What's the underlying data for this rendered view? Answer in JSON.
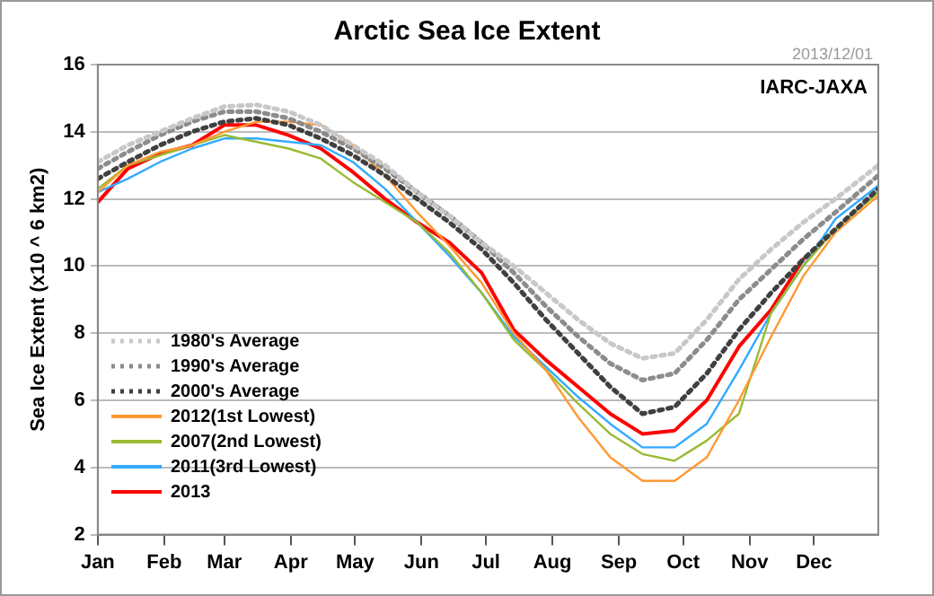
{
  "chart_data": {
    "type": "line",
    "title": "Arctic Sea Ice Extent",
    "ylabel": "Sea Ice Extent (x10 ^ 6 km2)",
    "annotations": [
      "2013/12/01",
      "IARC-JAXA"
    ],
    "x": [
      "--01-01",
      "--01-15",
      "--01-30",
      "--02-14",
      "--03-01",
      "--03-16",
      "--03-31",
      "--04-15",
      "--04-30",
      "--05-15",
      "--05-30",
      "--06-14",
      "--06-29",
      "--07-14",
      "--07-29",
      "--08-13",
      "--08-28",
      "--09-12",
      "--09-27",
      "--10-12",
      "--10-27",
      "--11-11",
      "--11-26",
      "--12-11",
      "--12-31"
    ],
    "xlim": [
      "--01-01",
      "--12-31"
    ],
    "xticks": [
      {
        "value": "--01-01",
        "label": "Jan"
      },
      {
        "value": "--02-01",
        "label": "Feb"
      },
      {
        "value": "--03-01",
        "label": "Mar"
      },
      {
        "value": "--04-01",
        "label": "Apr"
      },
      {
        "value": "--05-01",
        "label": "May"
      },
      {
        "value": "--06-01",
        "label": "Jun"
      },
      {
        "value": "--07-01",
        "label": "Jul"
      },
      {
        "value": "--08-01",
        "label": "Aug"
      },
      {
        "value": "--09-01",
        "label": "Sep"
      },
      {
        "value": "--10-01",
        "label": "Oct"
      },
      {
        "value": "--11-01",
        "label": "Nov"
      },
      {
        "value": "--12-01",
        "label": "Dec"
      }
    ],
    "ylim": [
      2,
      16
    ],
    "yticks": [
      2,
      4,
      6,
      8,
      10,
      12,
      14,
      16
    ],
    "grid": "y",
    "legend": "bottom left",
    "marker": "none",
    "series": [
      {
        "name": "1980's Average",
        "color": "#c8c8c8",
        "line_style": "dotted",
        "values": [
          13.1,
          13.6,
          14.0,
          14.4,
          14.75,
          14.8,
          14.6,
          14.2,
          13.6,
          13.0,
          12.2,
          11.5,
          10.7,
          10.0,
          9.2,
          8.4,
          7.7,
          7.25,
          7.4,
          8.4,
          9.6,
          10.5,
          11.3,
          12.0,
          13.0
        ]
      },
      {
        "name": "1990's Average",
        "color": "#8c8c8c",
        "line_style": "dotted",
        "values": [
          12.9,
          13.4,
          13.9,
          14.3,
          14.6,
          14.6,
          14.4,
          14.0,
          13.5,
          12.9,
          12.2,
          11.5,
          10.7,
          9.8,
          8.8,
          7.9,
          7.1,
          6.6,
          6.8,
          7.8,
          9.0,
          9.9,
          10.8,
          11.6,
          12.7
        ]
      },
      {
        "name": "2000's Average",
        "color": "#404040",
        "line_style": "dotted",
        "values": [
          12.6,
          13.1,
          13.6,
          14.0,
          14.3,
          14.4,
          14.2,
          13.8,
          13.3,
          12.7,
          12.0,
          11.3,
          10.5,
          9.5,
          8.4,
          7.4,
          6.4,
          5.6,
          5.8,
          6.8,
          8.1,
          9.2,
          10.2,
          11.1,
          12.3
        ]
      },
      {
        "name": "2012(1st Lowest)",
        "color": "#ff9933",
        "line_style": "solid",
        "values": [
          12.2,
          13.0,
          13.4,
          13.6,
          14.0,
          14.3,
          14.3,
          14.2,
          13.6,
          12.7,
          11.6,
          10.6,
          9.5,
          8.0,
          6.9,
          5.5,
          4.3,
          3.6,
          3.6,
          4.3,
          6.0,
          7.9,
          9.7,
          11.0,
          12.1
        ]
      },
      {
        "name": "2007(2nd Lowest)",
        "color": "#99bb33",
        "line_style": "solid",
        "values": [
          12.3,
          13.0,
          13.3,
          13.6,
          13.9,
          13.7,
          13.5,
          13.2,
          12.5,
          11.9,
          11.3,
          10.4,
          9.2,
          7.8,
          6.9,
          5.9,
          5.0,
          4.4,
          4.2,
          4.8,
          5.6,
          8.6,
          10.0,
          11.1,
          12.2
        ]
      },
      {
        "name": "2011(3rd Lowest)",
        "color": "#33aaff",
        "line_style": "solid",
        "values": [
          12.2,
          12.6,
          13.1,
          13.5,
          13.8,
          13.8,
          13.7,
          13.6,
          13.1,
          12.3,
          11.3,
          10.3,
          9.2,
          7.9,
          7.0,
          6.1,
          5.3,
          4.6,
          4.6,
          5.3,
          6.9,
          8.6,
          10.0,
          11.4,
          12.4
        ]
      },
      {
        "name": "2013",
        "color": "#ff0000",
        "line_style": "solid",
        "values": [
          11.9,
          12.9,
          13.35,
          13.6,
          14.2,
          14.2,
          13.9,
          13.5,
          12.8,
          12.0,
          11.3,
          10.7,
          9.8,
          8.1,
          7.2,
          6.4,
          5.6,
          5.0,
          5.1,
          6.0,
          7.6,
          8.7,
          10.2,
          null,
          null
        ]
      }
    ]
  }
}
